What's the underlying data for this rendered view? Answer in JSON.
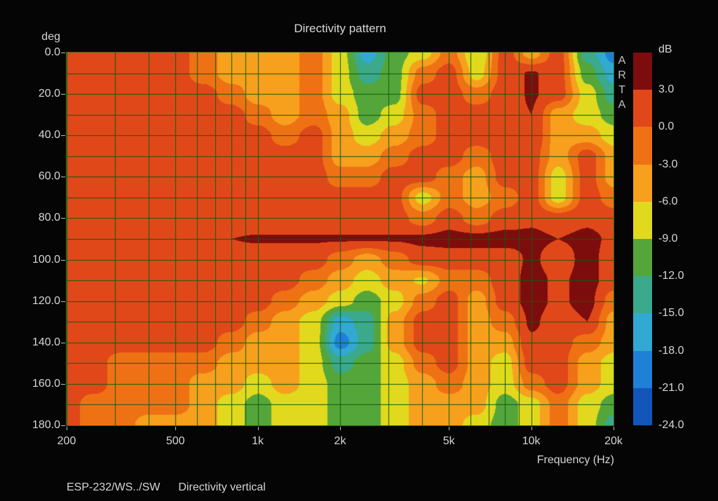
{
  "title": "Directivity pattern",
  "watermark": "ARTA",
  "footer": {
    "measurement": "ESP-232/WS../SW",
    "plot_type": "Directivity vertical"
  },
  "axes": {
    "y_unit": "deg",
    "y_ticks": [
      "0.0",
      "20.0",
      "40.0",
      "60.0",
      "80.0",
      "100.0",
      "120.0",
      "140.0",
      "160.0",
      "180.0"
    ],
    "x_ticks": [
      "200",
      "500",
      "1k",
      "2k",
      "5k",
      "10k",
      "20k"
    ],
    "x_tick_hz": [
      200,
      500,
      1000,
      2000,
      5000,
      10000,
      20000
    ],
    "x_label": "Frequency (Hz)"
  },
  "colorbar": {
    "unit": "dB",
    "labels": [
      "3.0",
      "0.0",
      "-3.0",
      "-6.0",
      "-9.0",
      "-12.0",
      "-15.0",
      "-18.0",
      "-21.0",
      "-24.0"
    ]
  },
  "colors": {
    "background": "#050505",
    "text": "#d6d6d6",
    "watermark_text": "#c0c0c0",
    "tick": "#b9b9b9",
    "plot_border": "#2b6e1c"
  },
  "chart_data": {
    "type": "heatmap",
    "title": "Directivity pattern",
    "xlabel": "Frequency (Hz)",
    "ylabel": "deg",
    "value_unit": "dB",
    "x_scale": "log",
    "x_range_hz": [
      200,
      20000
    ],
    "y_range_deg": [
      0,
      180
    ],
    "band_thresholds_db": [
      3,
      0,
      -3,
      -6,
      -9,
      -12,
      -15,
      -18,
      -21
    ],
    "band_colors": [
      "#7d0d0d",
      "#e0481a",
      "#ee7214",
      "#f6a01e",
      "#e0d91e",
      "#55a63a",
      "#3aa98c",
      "#31a9d2",
      "#1f80d8",
      "#1156b8"
    ],
    "grid": {
      "color": "#0f5a0f",
      "x_lines_hz": [
        200,
        300,
        400,
        500,
        600,
        700,
        800,
        900,
        1000,
        2000,
        3000,
        4000,
        5000,
        6000,
        7000,
        8000,
        9000,
        10000,
        20000
      ],
      "y_step_deg": 10
    },
    "frequencies_hz": [
      200,
      250,
      315,
      400,
      500,
      630,
      800,
      1000,
      1250,
      1600,
      2000,
      2500,
      3150,
      4000,
      5000,
      6300,
      8000,
      10000,
      12500,
      16000,
      20000
    ],
    "angles_deg": [
      0,
      10,
      20,
      30,
      40,
      50,
      60,
      70,
      80,
      90,
      100,
      110,
      120,
      130,
      140,
      150,
      160,
      170,
      180
    ],
    "values_db": [
      [
        1.5,
        1.5,
        1.5,
        1.5,
        1.5,
        -1.5,
        -4.5,
        -4.5,
        -4.5,
        -1.5,
        -7.5,
        -16.5,
        -10.5,
        -7.5,
        -1.5,
        -9.0,
        1.5,
        -4.5,
        1.5,
        -13.5,
        -19.5
      ],
      [
        1.5,
        1.5,
        1.5,
        1.5,
        1.5,
        -1.5,
        -4.5,
        -4.5,
        -4.5,
        -1.5,
        -7.5,
        -13.5,
        -10.5,
        -1.5,
        1.5,
        -7.5,
        1.5,
        3.3,
        1.5,
        -10.5,
        -16.5
      ],
      [
        1.5,
        1.5,
        1.5,
        1.5,
        1.5,
        1.5,
        -1.5,
        -4.5,
        -4.5,
        -1.5,
        -7.5,
        -10.5,
        -10.5,
        1.5,
        1.5,
        -1.5,
        1.5,
        3.3,
        1.5,
        -7.5,
        -13.5
      ],
      [
        1.5,
        1.5,
        1.5,
        1.5,
        1.5,
        1.5,
        1.5,
        -1.5,
        -4.5,
        -1.5,
        -4.5,
        -10.5,
        -7.5,
        -1.5,
        1.5,
        1.5,
        1.5,
        3.0,
        -4.5,
        -7.5,
        -10.5
      ],
      [
        1.5,
        1.5,
        1.5,
        1.5,
        1.5,
        1.5,
        1.5,
        1.5,
        -1.5,
        1.5,
        -4.5,
        -7.5,
        -4.5,
        -1.5,
        1.5,
        1.5,
        1.5,
        2.8,
        -4.5,
        -4.5,
        -7.5
      ],
      [
        1.5,
        1.5,
        1.5,
        1.5,
        1.5,
        1.5,
        1.5,
        1.5,
        1.5,
        1.5,
        -4.5,
        -4.5,
        -1.5,
        1.5,
        1.5,
        -1.5,
        1.5,
        1.5,
        -4.5,
        1.5,
        -4.5
      ],
      [
        1.5,
        1.5,
        1.5,
        1.5,
        1.5,
        1.5,
        1.5,
        1.5,
        1.5,
        1.5,
        -1.5,
        -1.5,
        1.5,
        1.5,
        -1.5,
        -4.5,
        1.5,
        1.5,
        -7.5,
        1.5,
        -4.5
      ],
      [
        1.5,
        1.5,
        1.5,
        1.5,
        1.5,
        1.5,
        1.5,
        1.5,
        1.5,
        1.5,
        1.5,
        1.5,
        1.5,
        -7.5,
        -1.5,
        -4.5,
        -1.5,
        1.5,
        -7.5,
        1.5,
        -1.5
      ],
      [
        1.5,
        1.5,
        1.5,
        1.5,
        1.5,
        1.5,
        1.5,
        1.5,
        1.5,
        1.5,
        1.5,
        1.5,
        1.5,
        -1.5,
        1.5,
        -1.5,
        1.5,
        2.5,
        1.5,
        2.5,
        1.5
      ],
      [
        1.5,
        1.5,
        1.5,
        1.5,
        1.5,
        2.0,
        3.0,
        3.2,
        3.2,
        3.2,
        3.2,
        3.2,
        3.2,
        3.6,
        4.0,
        4.0,
        4.0,
        3.6,
        3.0,
        3.6,
        2.5
      ],
      [
        1.5,
        1.5,
        1.5,
        1.5,
        1.5,
        1.5,
        1.5,
        1.5,
        1.5,
        1.5,
        -1.5,
        -4.5,
        -1.5,
        1.5,
        1.5,
        1.5,
        1.5,
        3.5,
        1.5,
        4.0,
        1.5
      ],
      [
        1.5,
        1.5,
        1.5,
        1.5,
        1.5,
        1.5,
        1.5,
        1.5,
        1.5,
        -1.5,
        -4.5,
        -7.5,
        -4.5,
        -6.5,
        -1.5,
        -1.5,
        1.5,
        4.0,
        2.5,
        4.0,
        1.5
      ],
      [
        1.5,
        1.5,
        1.5,
        1.5,
        1.5,
        1.5,
        1.5,
        1.5,
        -1.5,
        -4.5,
        -7.5,
        -10.5,
        -7.5,
        -1.5,
        1.5,
        -4.5,
        1.5,
        4.0,
        2.5,
        4.0,
        -1.5
      ],
      [
        1.5,
        1.5,
        1.5,
        1.5,
        1.5,
        1.5,
        1.5,
        -1.5,
        -4.5,
        -7.5,
        -16.5,
        -13.5,
        -4.5,
        1.5,
        1.5,
        -4.5,
        -1.5,
        3.5,
        1.5,
        3.0,
        -4.5
      ],
      [
        1.5,
        1.5,
        1.5,
        1.5,
        1.5,
        1.5,
        -1.5,
        -4.5,
        -4.5,
        -7.5,
        -19.5,
        -13.5,
        -4.5,
        1.5,
        1.5,
        -4.5,
        -4.5,
        2.5,
        1.5,
        -1.5,
        -4.5
      ],
      [
        1.5,
        1.5,
        -1.5,
        -1.5,
        -1.5,
        -1.5,
        -4.5,
        -4.5,
        -4.5,
        -7.5,
        -13.5,
        -10.5,
        -7.5,
        -1.5,
        1.5,
        -4.5,
        -7.5,
        1.5,
        1.5,
        -4.5,
        -7.5
      ],
      [
        1.5,
        1.5,
        -1.5,
        -1.5,
        -1.5,
        -4.5,
        -4.5,
        -7.5,
        -4.5,
        -7.5,
        -10.5,
        -10.5,
        -7.5,
        -4.5,
        -1.5,
        -4.5,
        -7.5,
        -1.5,
        1.5,
        -4.5,
        -7.5
      ],
      [
        1.5,
        -1.5,
        -1.5,
        -1.5,
        -1.5,
        -4.5,
        -7.5,
        -10.5,
        -7.5,
        -7.5,
        -10.5,
        -10.5,
        -7.5,
        -4.5,
        -4.5,
        -4.5,
        -10.5,
        -7.5,
        -1.5,
        -7.5,
        -10.5
      ],
      [
        1.5,
        -1.5,
        -1.5,
        -4.5,
        -4.5,
        -4.5,
        -7.5,
        -10.5,
        -7.5,
        -7.5,
        -10.5,
        -10.5,
        -7.5,
        -4.5,
        -4.5,
        -7.5,
        -10.5,
        -7.5,
        -1.5,
        -7.5,
        -13.5
      ]
    ]
  }
}
